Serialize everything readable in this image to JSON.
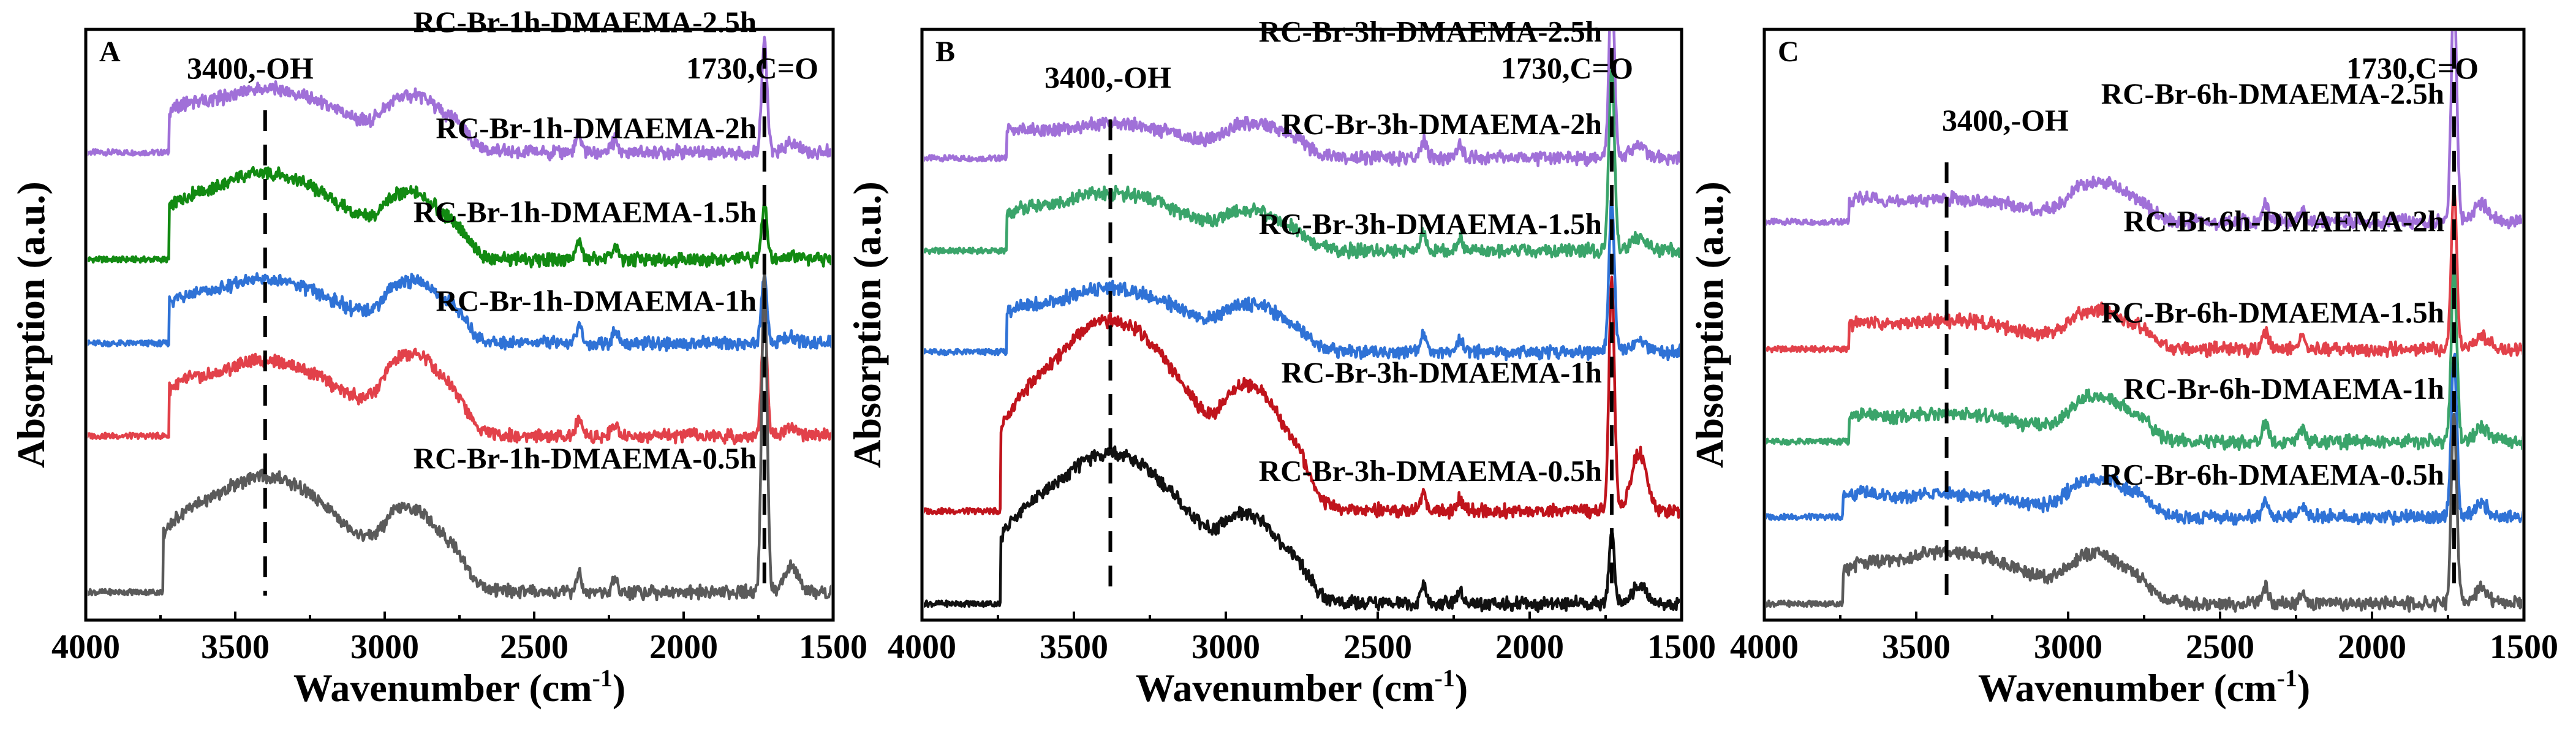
{
  "chart_data": [
    {
      "type": "line",
      "panel": "A",
      "xlabel": "Wavenumber (cm-1)",
      "xlabel_main": "Wavenumber (cm",
      "xlabel_sup": "-1",
      "xlabel_close": ")",
      "ylabel": "Absorption (a.u.)",
      "xlim": [
        4000,
        1500
      ],
      "x_ticks": [
        "4000",
        "3500",
        "3000",
        "2500",
        "2000",
        "1500"
      ],
      "annotations": [
        {
          "text": "3400,-OH",
          "x": 3400
        },
        {
          "text": "1730,C=O",
          "x": 1730
        }
      ],
      "peaks_x": [
        3400,
        1730
      ],
      "series": [
        {
          "name": "RC-Br-1h-DMAEMA-2.5h",
          "color": "#a070d8",
          "baseline": 0.8,
          "oh": 0.11,
          "ch": 0.08,
          "co": 0.19
        },
        {
          "name": "RC-Br-1h-DMAEMA-2h",
          "color": "#128a12",
          "baseline": 0.615,
          "oh": 0.15,
          "ch": 0.09,
          "co": 0.1
        },
        {
          "name": "RC-Br-1h-DMAEMA-1.5h",
          "color": "#2f72d6",
          "baseline": 0.47,
          "oh": 0.11,
          "ch": 0.09,
          "co": 0.12
        },
        {
          "name": "RC-Br-1h-DMAEMA-1h",
          "color": "#e2414a",
          "baseline": 0.31,
          "oh": 0.13,
          "ch": 0.12,
          "co": 0.21
        },
        {
          "name": "RC-Br-1h-DMAEMA-0.5h",
          "color": "#5a5a5a",
          "baseline": 0.04,
          "oh": 0.2,
          "ch": 0.11,
          "co": 0.55
        }
      ]
    },
    {
      "type": "line",
      "panel": "B",
      "xlabel": "Wavenumber (cm-1)",
      "xlabel_main": "Wavenumber (cm",
      "xlabel_sup": "-1",
      "xlabel_close": ")",
      "ylabel": "Absorption (a.u.)",
      "xlim": [
        4000,
        1500
      ],
      "x_ticks": [
        "4000",
        "3500",
        "3000",
        "2500",
        "2000",
        "1500"
      ],
      "annotations": [
        {
          "text": "3400,-OH",
          "x": 3380
        },
        {
          "text": "1730,C=O",
          "x": 1730
        }
      ],
      "peaks_x": [
        3380,
        1730
      ],
      "series": [
        {
          "name": "RC-Br-3h-DMAEMA-2.5h",
          "color": "#a070d8",
          "baseline": 0.79,
          "oh": 0.06,
          "ch": 0.05,
          "co": 0.3
        },
        {
          "name": "RC-Br-3h-DMAEMA-2h",
          "color": "#3aa46a",
          "baseline": 0.63,
          "oh": 0.1,
          "ch": 0.05,
          "co": 0.32
        },
        {
          "name": "RC-Br-3h-DMAEMA-1.5h",
          "color": "#2f72d6",
          "baseline": 0.455,
          "oh": 0.11,
          "ch": 0.06,
          "co": 0.26
        },
        {
          "name": "RC-Br-3h-DMAEMA-1h",
          "color": "#c0141c",
          "baseline": 0.18,
          "oh": 0.33,
          "ch": 0.15,
          "co": 0.4
        },
        {
          "name": "RC-Br-3h-DMAEMA-0.5h",
          "color": "#111111",
          "baseline": 0.02,
          "oh": 0.26,
          "ch": 0.1,
          "co": 0.12
        }
      ]
    },
    {
      "type": "line",
      "panel": "C",
      "xlabel": "Wavenumber (cm-1)",
      "xlabel_main": "Wavenumber (cm",
      "xlabel_sup": "-1",
      "xlabel_close": ")",
      "ylabel": "Absorption (a.u.)",
      "xlim": [
        4000,
        1500
      ],
      "x_ticks": [
        "4000",
        "3500",
        "3000",
        "2500",
        "2000",
        "1500"
      ],
      "annotations": [
        {
          "text": "3400,-OH",
          "x": 3400
        },
        {
          "text": "1730,C=O",
          "x": 1730
        }
      ],
      "peaks_x": [
        3400,
        1730
      ],
      "series": [
        {
          "name": "RC-Br-6h-DMAEMA-2.5h",
          "color": "#a070d8",
          "baseline": 0.68,
          "oh": 0.04,
          "ch": 0.06,
          "co": 0.4
        },
        {
          "name": "RC-Br-6h-DMAEMA-2h",
          "color": "#e2414a",
          "baseline": 0.46,
          "oh": 0.05,
          "ch": 0.06,
          "co": 0.28
        },
        {
          "name": "RC-Br-6h-DMAEMA-1.5h",
          "color": "#3aa46a",
          "baseline": 0.3,
          "oh": 0.05,
          "ch": 0.07,
          "co": 0.3
        },
        {
          "name": "RC-Br-6h-DMAEMA-1h",
          "color": "#2f72d6",
          "baseline": 0.17,
          "oh": 0.04,
          "ch": 0.06,
          "co": 0.28
        },
        {
          "name": "RC-Br-6h-DMAEMA-0.5h",
          "color": "#5a5a5a",
          "baseline": 0.02,
          "oh": 0.09,
          "ch": 0.07,
          "co": 0.33
        }
      ]
    }
  ]
}
